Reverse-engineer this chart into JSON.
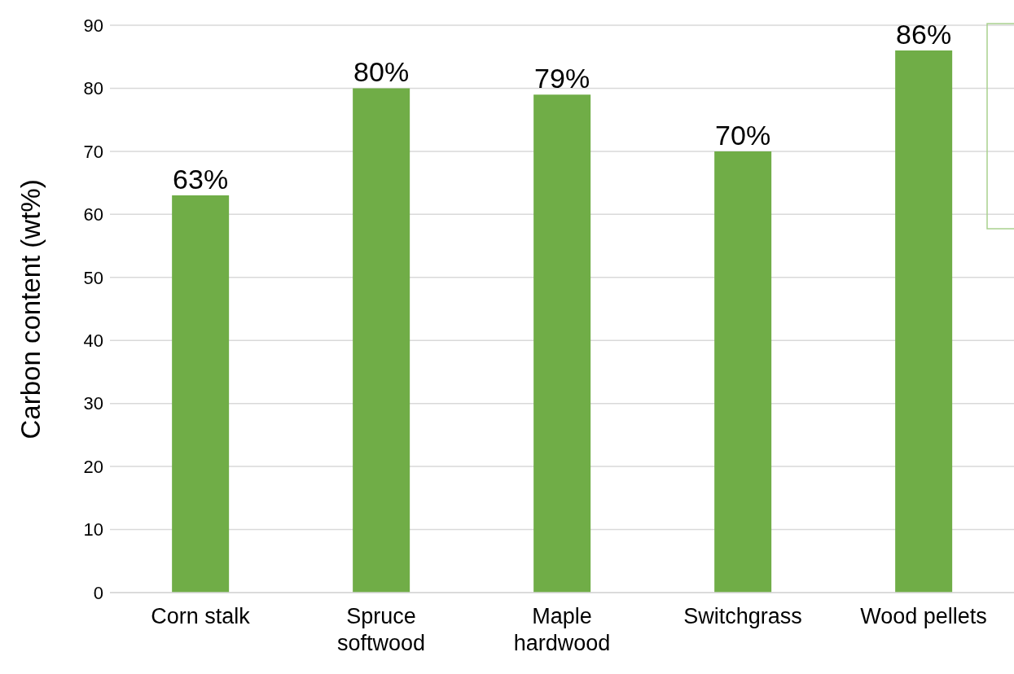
{
  "chart_data": {
    "type": "bar",
    "ylabel": "Carbon content (wt%)",
    "categories": [
      "Corn stalk",
      "Spruce softwood",
      "Maple hardwood",
      "Switchgrass",
      "Wood pellets"
    ],
    "values": [
      63,
      80,
      79,
      70,
      86
    ],
    "value_labels": [
      "63%",
      "80%",
      "79%",
      "70%",
      "86%"
    ],
    "color": "#70ad47",
    "ylim": [
      0,
      90
    ],
    "yticks": [
      0,
      10,
      20,
      30,
      40,
      50,
      60,
      70,
      80,
      90
    ],
    "grid": "y"
  }
}
